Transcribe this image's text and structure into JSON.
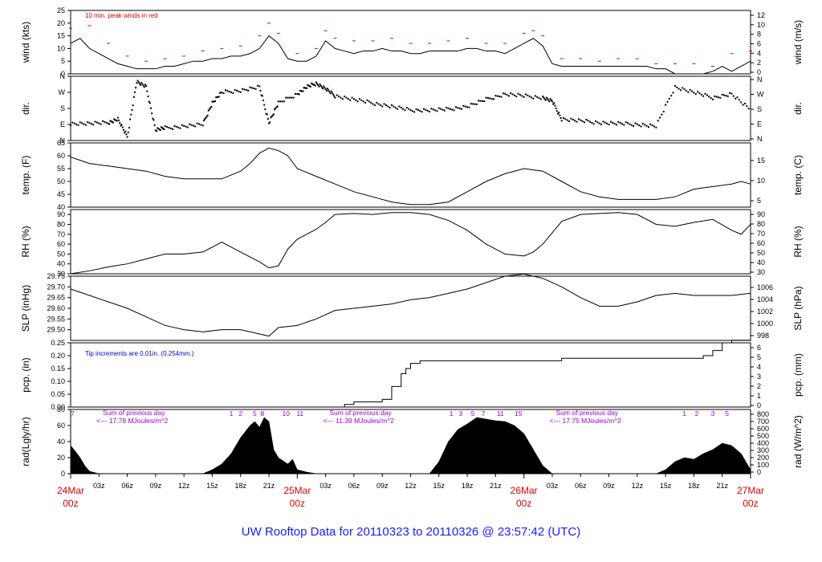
{
  "chart_data": {
    "type": "line",
    "title": "UW Rooftop Data for 20110323  to  20110326 @ 23:57:42  (UTC)",
    "x_hours_range": [
      0,
      72
    ],
    "hour_tick_labels": [
      "03z",
      "06z",
      "09z",
      "12z",
      "15z",
      "18z",
      "21z",
      "03z",
      "06z",
      "09z",
      "12z",
      "15z",
      "18z",
      "21z",
      "03z",
      "06z",
      "09z",
      "12z",
      "15z",
      "18z",
      "21z"
    ],
    "day_labels": [
      {
        "date": "24Mar",
        "hour": "00z"
      },
      {
        "date": "25Mar",
        "hour": "00z"
      },
      {
        "date": "26Mar",
        "hour": "00z"
      },
      {
        "date": "27Mar",
        "hour": "00z"
      }
    ],
    "panels": [
      {
        "id": "wind",
        "left_label": "wind (kts)",
        "right_label": "wind (m/s)",
        "left_range": [
          0,
          25
        ],
        "left_ticks": [
          "0",
          "5",
          "10",
          "15",
          "20",
          "25"
        ],
        "right_ticks": [
          "0",
          "2",
          "4",
          "6",
          "8",
          "10",
          "12"
        ],
        "annotation": "10 min. peak winds in red",
        "series": [
          {
            "name": "wind speed (kts)",
            "x": [
              0,
              1,
              2,
              3,
              4,
              5,
              6,
              7,
              8,
              9,
              10,
              11,
              12,
              13,
              14,
              15,
              16,
              17,
              18,
              19,
              20,
              21,
              22,
              23,
              24,
              25,
              26,
              27,
              28,
              29,
              30,
              31,
              32,
              33,
              34,
              35,
              36,
              37,
              38,
              39,
              40,
              41,
              42,
              43,
              44,
              45,
              46,
              47,
              48,
              49,
              50,
              51,
              52,
              53,
              54,
              55,
              56,
              57,
              58,
              59,
              60,
              61,
              62,
              63,
              64,
              65,
              66,
              67,
              68,
              69,
              70,
              71,
              72
            ],
            "y": [
              12,
              14,
              10,
              8,
              6,
              4,
              3,
              2,
              2,
              2,
              3,
              3,
              4,
              5,
              5,
              6,
              6,
              7,
              7,
              8,
              10,
              15,
              12,
              6,
              5,
              5,
              7,
              13,
              10,
              9,
              8,
              9,
              9,
              10,
              9,
              9,
              8,
              8,
              9,
              9,
              9,
              9,
              10,
              10,
              9,
              9,
              8,
              10,
              12,
              14,
              11,
              4,
              3,
              3,
              3,
              3,
              3,
              3,
              3,
              3,
              3,
              3,
              2,
              2,
              0,
              0,
              0,
              0,
              1,
              3,
              1,
              3,
              5
            ]
          },
          {
            "name": "10 min. peak winds",
            "x": [
              0,
              2,
              4,
              6,
              8,
              10,
              12,
              14,
              16,
              18,
              20,
              21,
              22,
              24,
              26,
              27,
              28,
              30,
              32,
              34,
              36,
              38,
              40,
              42,
              44,
              46,
              48,
              49,
              50,
              52,
              54,
              56,
              58,
              60,
              62,
              64,
              66,
              68,
              70,
              72
            ],
            "y": [
              18,
              19,
              12,
              7,
              5,
              6,
              7,
              9,
              10,
              11,
              15,
              20,
              16,
              8,
              10,
              17,
              14,
              13,
              13,
              14,
              12,
              12,
              13,
              14,
              12,
              12,
              16,
              17,
              15,
              6,
              6,
              5,
              6,
              6,
              4,
              4,
              4,
              3,
              8,
              9
            ]
          }
        ]
      },
      {
        "id": "dir",
        "left_label": "dir.",
        "right_label": "dir.",
        "left_range": [
          0,
          360
        ],
        "left_ticks": [
          "N",
          "E",
          "S",
          "W",
          "N"
        ],
        "right_ticks": [
          "N",
          "E",
          "S",
          "W",
          "N"
        ],
        "series": [
          {
            "name": "wind direction (deg)",
            "x": [
              0,
              2,
              4,
              5,
              6,
              7,
              8,
              9,
              10,
              12,
              14,
              15,
              16,
              18,
              20,
              21,
              22,
              24,
              25,
              26,
              27,
              28,
              30,
              32,
              34,
              36,
              38,
              40,
              42,
              44,
              46,
              48,
              50,
              51,
              52,
              54,
              56,
              58,
              60,
              62,
              64,
              66,
              68,
              70,
              72
            ],
            "y": [
              95,
              95,
              100,
              120,
              20,
              330,
              300,
              60,
              70,
              80,
              90,
              210,
              270,
              280,
              300,
              100,
              210,
              260,
              300,
              320,
              290,
              250,
              230,
              210,
              190,
              170,
              170,
              175,
              190,
              230,
              260,
              250,
              240,
              220,
              120,
              110,
              100,
              95,
              90,
              80,
              300,
              270,
              240,
              260,
              170
            ]
          }
        ]
      },
      {
        "id": "temp",
        "left_label": "temp. (F)",
        "right_label": "temp. (C)",
        "left_range": [
          40,
          65
        ],
        "left_ticks": [
          "40",
          "45",
          "50",
          "55",
          "60",
          "65"
        ],
        "right_ticks": [
          "5",
          "10",
          "15"
        ],
        "series": [
          {
            "name": "temperature (F)",
            "x": [
              0,
              2,
              4,
              6,
              8,
              10,
              12,
              14,
              16,
              18,
              19,
              20,
              21,
              22,
              23,
              24,
              26,
              28,
              30,
              32,
              34,
              36,
              38,
              40,
              42,
              44,
              46,
              48,
              50,
              52,
              54,
              56,
              58,
              60,
              62,
              64,
              66,
              68,
              70,
              71,
              72
            ],
            "y": [
              59.5,
              57,
              56,
              55,
              54,
              52,
              51,
              51,
              51,
              54,
              57,
              61,
              63,
              62,
              60,
              55,
              52,
              49,
              46,
              44,
              42,
              41,
              41,
              42,
              46,
              50,
              53,
              55,
              54,
              50,
              46,
              44,
              43,
              43,
              43,
              44,
              47,
              48,
              49,
              50,
              49
            ]
          }
        ]
      },
      {
        "id": "rh",
        "left_label": "RH (%)",
        "right_label": "RH (%)",
        "left_range": [
          30,
          95
        ],
        "left_ticks": [
          "30",
          "40",
          "50",
          "60",
          "70",
          "80",
          "90"
        ],
        "right_ticks": [
          "30",
          "40",
          "50",
          "60",
          "70",
          "80",
          "90"
        ],
        "series": [
          {
            "name": "relative humidity (%)",
            "x": [
              0,
              2,
              4,
              6,
              8,
              10,
              12,
              14,
              15,
              16,
              18,
              20,
              21,
              22,
              23,
              24,
              26,
              27,
              28,
              30,
              32,
              34,
              36,
              38,
              40,
              42,
              44,
              46,
              48,
              49,
              50,
              52,
              54,
              56,
              58,
              60,
              62,
              64,
              66,
              68,
              70,
              71,
              72
            ],
            "y": [
              30,
              33,
              37,
              40,
              45,
              50,
              50,
              52,
              57,
              62,
              52,
              42,
              36,
              38,
              55,
              65,
              75,
              82,
              90,
              91,
              90,
              92,
              92,
              90,
              84,
              74,
              60,
              50,
              48,
              52,
              60,
              83,
              90,
              91,
              92,
              90,
              80,
              78,
              82,
              85,
              74,
              70,
              80
            ]
          }
        ]
      },
      {
        "id": "slp",
        "left_label": "SLP (inHg)",
        "right_label": "SLP (hPa)",
        "left_range": [
          29.45,
          29.75
        ],
        "left_ticks": [
          "29.50",
          "29.55",
          "29.60",
          "29.65",
          "29.70",
          "29.75"
        ],
        "right_ticks": [
          "998",
          "1000",
          "1002",
          "1004",
          "1006"
        ],
        "series": [
          {
            "name": "sea level pressure (inHg)",
            "x": [
              0,
              2,
              4,
              6,
              8,
              10,
              12,
              14,
              16,
              18,
              20,
              21,
              22,
              24,
              26,
              28,
              30,
              32,
              34,
              36,
              38,
              40,
              42,
              44,
              46,
              48,
              50,
              52,
              54,
              56,
              58,
              60,
              62,
              64,
              66,
              68,
              70,
              72
            ],
            "y": [
              29.69,
              29.66,
              29.63,
              29.6,
              29.56,
              29.52,
              29.5,
              29.49,
              29.5,
              29.5,
              29.48,
              29.47,
              29.51,
              29.52,
              29.55,
              29.59,
              29.6,
              29.61,
              29.62,
              29.64,
              29.65,
              29.67,
              29.69,
              29.72,
              29.75,
              29.76,
              29.74,
              29.7,
              29.65,
              29.61,
              29.61,
              29.63,
              29.66,
              29.67,
              29.66,
              29.66,
              29.66,
              29.67
            ]
          }
        ]
      },
      {
        "id": "pcp",
        "left_label": "pcp. (in)",
        "right_label": "pcp. (mm)",
        "left_range": [
          0,
          0.25
        ],
        "left_ticks": [
          "0.00",
          "0.05",
          "0.10",
          "0.15",
          "0.20",
          "0.25"
        ],
        "right_ticks": [
          "0",
          "1",
          "2",
          "3",
          "4",
          "5",
          "6"
        ],
        "annotation": "Tip increments are 0.01in. (0.254mm.)",
        "series": [
          {
            "name": "accumulated precipitation (in)",
            "x": [
              0,
              28,
              29,
              30,
              31,
              33,
              34,
              35,
              35.5,
              36,
              37,
              38,
              40,
              44,
              48,
              52,
              66,
              67,
              68,
              69,
              70,
              72
            ],
            "y": [
              0,
              0,
              0.01,
              0.02,
              0.02,
              0.03,
              0.08,
              0.13,
              0.15,
              0.17,
              0.18,
              0.18,
              0.18,
              0.18,
              0.18,
              0.19,
              0.19,
              0.2,
              0.22,
              0.25,
              0.26,
              0.26
            ]
          }
        ]
      },
      {
        "id": "rad",
        "left_label": "rad(Lgly/hr)",
        "right_label": "rad (W/m^2)",
        "left_range": [
          0,
          80
        ],
        "left_ticks": [
          "0",
          "20",
          "40",
          "60",
          "80"
        ],
        "right_ticks": [
          "0",
          "100",
          "200",
          "300",
          "400",
          "500",
          "600",
          "700",
          "800"
        ],
        "annotations": [
          {
            "text": "Sum of previous day",
            "day": 1
          },
          {
            "text": "<--- 17.78 MJoules/m^2",
            "day": 1
          },
          {
            "text": "Sum of previous day",
            "day": 2
          },
          {
            "text": "<--- 11.39 MJoules/m^2",
            "day": 2
          },
          {
            "text": "Sum of previous day",
            "day": 3
          },
          {
            "text": "<--- 17.75 MJoules/m^2",
            "day": 3
          }
        ],
        "top_markers": [
          {
            "text": "7",
            "x": 0.2
          },
          {
            "text": "1",
            "x": 17
          },
          {
            "text": "2",
            "x": 18
          },
          {
            "text": "5",
            "x": 19.5
          },
          {
            "text": "8",
            "x": 20.3
          },
          {
            "text": "10",
            "x": 22.8
          },
          {
            "text": "11",
            "x": 24.3
          },
          {
            "text": "1",
            "x": 40.3
          },
          {
            "text": "3",
            "x": 41.3
          },
          {
            "text": "5",
            "x": 42.6
          },
          {
            "text": "7",
            "x": 43.7
          },
          {
            "text": "11",
            "x": 45.5
          },
          {
            "text": "15",
            "x": 47.4
          },
          {
            "text": "1",
            "x": 65
          },
          {
            "text": "2",
            "x": 66.3
          },
          {
            "text": "3",
            "x": 68
          },
          {
            "text": "5",
            "x": 69.5
          }
        ],
        "series": [
          {
            "name": "solar radiation (Lgly/hr)",
            "x": [
              0,
              0.5,
              1,
              1.5,
              2,
              3,
              12,
              14,
              15,
              16,
              17,
              18,
              19,
              19.5,
              20,
              20.5,
              21,
              21.5,
              22,
              23,
              23.5,
              24,
              25,
              26,
              27,
              38,
              39,
              40,
              41,
              42,
              43,
              44,
              45,
              46,
              47,
              48,
              49,
              50,
              51,
              60,
              62,
              63,
              64,
              65,
              66,
              67,
              68,
              69,
              70,
              71,
              72
            ],
            "y": [
              35,
              28,
              20,
              10,
              3,
              0,
              0,
              0,
              5,
              12,
              25,
              45,
              60,
              65,
              58,
              70,
              65,
              30,
              20,
              12,
              18,
              5,
              2,
              0,
              0,
              0,
              15,
              40,
              55,
              62,
              70,
              68,
              66,
              65,
              60,
              50,
              30,
              10,
              0,
              0,
              0,
              5,
              15,
              20,
              18,
              25,
              30,
              38,
              35,
              25,
              5
            ]
          }
        ]
      }
    ]
  }
}
